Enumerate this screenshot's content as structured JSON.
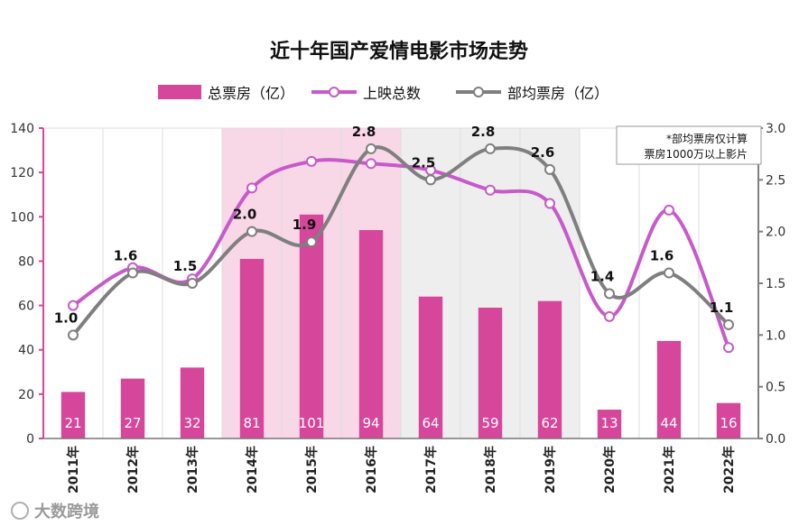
{
  "chart_data": {
    "type": "bar",
    "title": "近十年国产爱情电影市场走势",
    "categories": [
      "2011年",
      "2012年",
      "2013年",
      "2014年",
      "2015年",
      "2016年",
      "2017年",
      "2018年",
      "2019年",
      "2020年",
      "2021年",
      "2022年"
    ],
    "series": [
      {
        "name": "总票房（亿）",
        "type": "bar",
        "axis": "left",
        "color": "#d6469a",
        "values": [
          21,
          27,
          32,
          81,
          101,
          94,
          64,
          59,
          62,
          13,
          44,
          16
        ]
      },
      {
        "name": "上映总数",
        "type": "line",
        "axis": "left",
        "color": "#c75ac9",
        "values": [
          60,
          77,
          72,
          113,
          125,
          124,
          121,
          112,
          106,
          55,
          103,
          41
        ]
      },
      {
        "name": "部均票房（亿）",
        "type": "line",
        "axis": "right",
        "color": "#7f7f7f",
        "values": [
          1.0,
          1.6,
          1.5,
          2.0,
          1.9,
          2.8,
          2.5,
          2.8,
          2.6,
          1.4,
          1.6,
          1.1
        ]
      }
    ],
    "y_left": {
      "lim": [
        0,
        140
      ],
      "ticks": [
        "0",
        "20",
        "40",
        "60",
        "80",
        "100",
        "120",
        "140"
      ],
      "tick_values": [
        0,
        20,
        40,
        60,
        80,
        100,
        120,
        140
      ]
    },
    "y_right": {
      "lim": [
        0,
        3.0
      ],
      "ticks": [
        "0.0",
        "0.5",
        "1.0",
        "1.5",
        "2.0",
        "2.5",
        "3.0"
      ],
      "tick_values": [
        0,
        0.5,
        1.0,
        1.5,
        2.0,
        2.5,
        3.0
      ]
    },
    "bar_labels": [
      "21",
      "27",
      "32",
      "81",
      "101",
      "94",
      "64",
      "59",
      "62",
      "13",
      "44",
      "16"
    ],
    "avg_labels": [
      "1.0",
      "1.6",
      "1.5",
      "2.0",
      "1.9",
      "2.8",
      "2.5",
      "2.8",
      "2.6",
      "1.4",
      "1.6",
      "1.1"
    ],
    "note_lines": [
      "*部均票房仅计算",
      "票房1000万以上影片"
    ],
    "legend_position": "top",
    "grid": "vertical",
    "colors": {
      "pink_band": "#f8d7e6",
      "gray_band": "#eeeeee",
      "left_axis": "#d6469a",
      "right_axis": "#7f7f7f"
    }
  },
  "watermark": "大数跨境"
}
